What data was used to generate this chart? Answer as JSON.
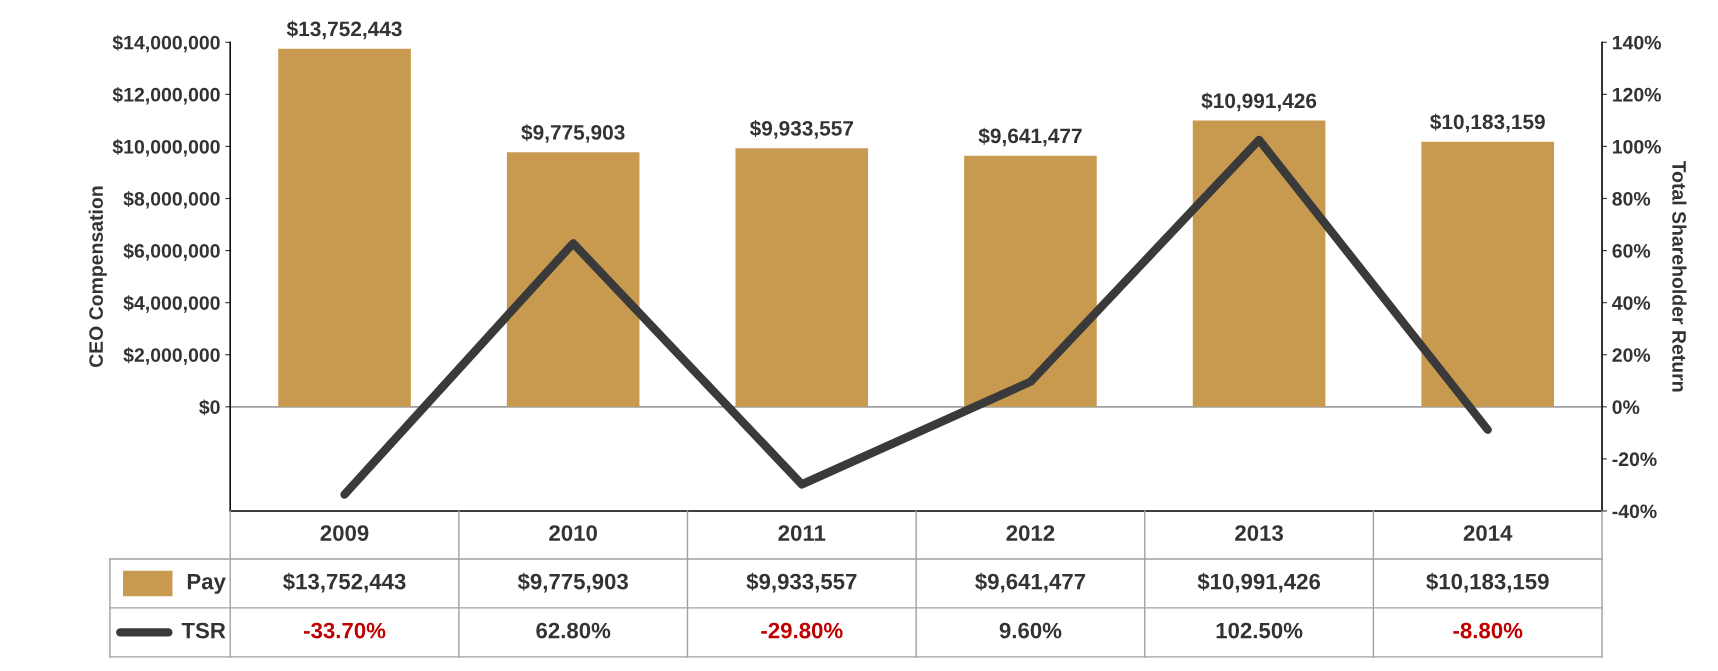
{
  "chart_data": {
    "type": "bar",
    "ylabel": "CEO Compensation",
    "y2label": "Total Shareholder Return",
    "categories": [
      "2009",
      "2010",
      "2011",
      "2012",
      "2013",
      "2014"
    ],
    "series": [
      {
        "name": "Pay",
        "color": "#c89a50",
        "values": [
          13752443,
          9775903,
          9933557,
          9641477,
          10991426,
          10183159
        ],
        "value_labels": [
          "$13,752,443",
          "$9,775,903",
          "$9,933,557",
          "$9,641,477",
          "$10,991,426",
          "$10,183,159"
        ]
      },
      {
        "name": "TSR",
        "type": "line",
        "axis": "y2",
        "color": "#3a3a3a",
        "values": [
          -33.7,
          62.8,
          -29.8,
          9.6,
          102.5,
          -8.8
        ],
        "value_labels": [
          "-33.70%",
          "62.80%",
          "-29.80%",
          "9.60%",
          "102.50%",
          "-8.80%"
        ]
      }
    ],
    "ylim": [
      -4000000,
      14000000
    ],
    "yticks": [
      {
        "value": 0,
        "label": "$0"
      },
      {
        "value": 2000000,
        "label": "$2,000,000"
      },
      {
        "value": 4000000,
        "label": "$4,000,000"
      },
      {
        "value": 6000000,
        "label": "$6,000,000"
      },
      {
        "value": 8000000,
        "label": "$8,000,000"
      },
      {
        "value": 10000000,
        "label": "$10,000,000"
      },
      {
        "value": 12000000,
        "label": "$12,000,000"
      },
      {
        "value": 14000000,
        "label": "$14,000,000"
      }
    ],
    "y2lim": [
      -40,
      140
    ],
    "y2ticks": [
      {
        "value": -40,
        "label": "-40%"
      },
      {
        "value": -20,
        "label": "-20%"
      },
      {
        "value": 0,
        "label": "0%"
      },
      {
        "value": 20,
        "label": "20%"
      },
      {
        "value": 40,
        "label": "40%"
      },
      {
        "value": 60,
        "label": "60%"
      },
      {
        "value": 80,
        "label": "80%"
      },
      {
        "value": 100,
        "label": "100%"
      },
      {
        "value": 120,
        "label": "120%"
      },
      {
        "value": 140,
        "label": "140%"
      }
    ],
    "ref_lines": [
      {
        "axis": "y",
        "value": 0,
        "color": "#a0a0a0"
      }
    ],
    "legend": "bottom left",
    "grid": false,
    "marker": "none",
    "line_style": "solid"
  }
}
